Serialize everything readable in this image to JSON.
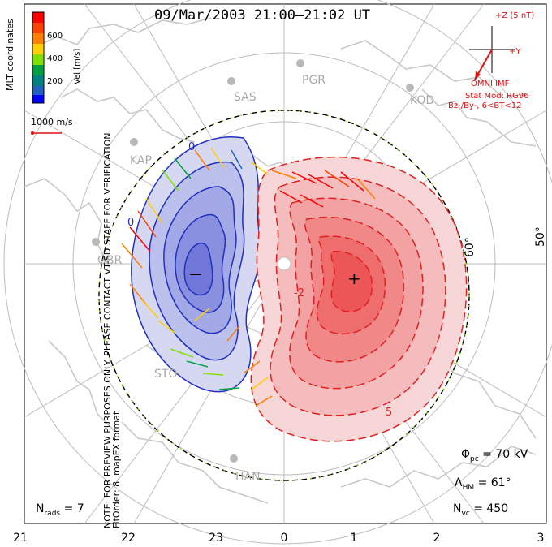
{
  "title": "09/Mar/2003 21:00–21:02 UT",
  "coordinates_label": "MLT coordinates",
  "color_bar": {
    "label": "Vel [m/s]",
    "ticks": [
      "600",
      "400",
      "200"
    ],
    "colors": [
      "#ff0000",
      "#ff7f00",
      "#ffd000",
      "#80e000",
      "#00a040",
      "#008080",
      "#2060c0",
      "#0000ff"
    ]
  },
  "velocity_scale": "1000 m/s",
  "imf": {
    "z_label": "+Z (5 nT)",
    "y_label": "+Y",
    "source": "OMNI IMF",
    "model": "Stat Mod: RG96",
    "condition": "Bz-/By-, 6<BT<12"
  },
  "latitude_labels": [
    "60°",
    "50°"
  ],
  "mlt_labels": [
    "21",
    "22",
    "23",
    "0",
    "1",
    "2",
    "3"
  ],
  "radars": [
    "PGR",
    "SAS",
    "KOD",
    "KAP",
    "GBR",
    "HAN",
    "STO"
  ],
  "potential_labels": [
    "0",
    "0",
    "-2",
    "5"
  ],
  "markers": {
    "min": "−",
    "max": "+"
  },
  "stats": {
    "phi_pc_symbol": "Φ",
    "phi_pc_sub": "pc",
    "phi_pc_value": "= 70 kV",
    "lambda_hm_symbol": "Λ",
    "lambda_hm_sub": "HM",
    "lambda_hm_value": "= 61°",
    "n_vc_symbol": "N",
    "n_vc_sub": "vc",
    "n_vc_value": "= 450",
    "n_rads_symbol": "N",
    "n_rads_sub": "rads",
    "n_rads_value": "= 7"
  },
  "side_note_1": "NOTE: FOR PREVIEW PURPOSES ONLY. PLEASE CONTACT VT-SD STAFF FOR VERIFICATION.",
  "side_note_2": "FitOrder: 8, mapEX format",
  "colors": {
    "negative_cell": "#4040d0",
    "positive_cell": "#e02020",
    "imf_red": "#e01010",
    "map_gray": "#c8c8c8"
  }
}
